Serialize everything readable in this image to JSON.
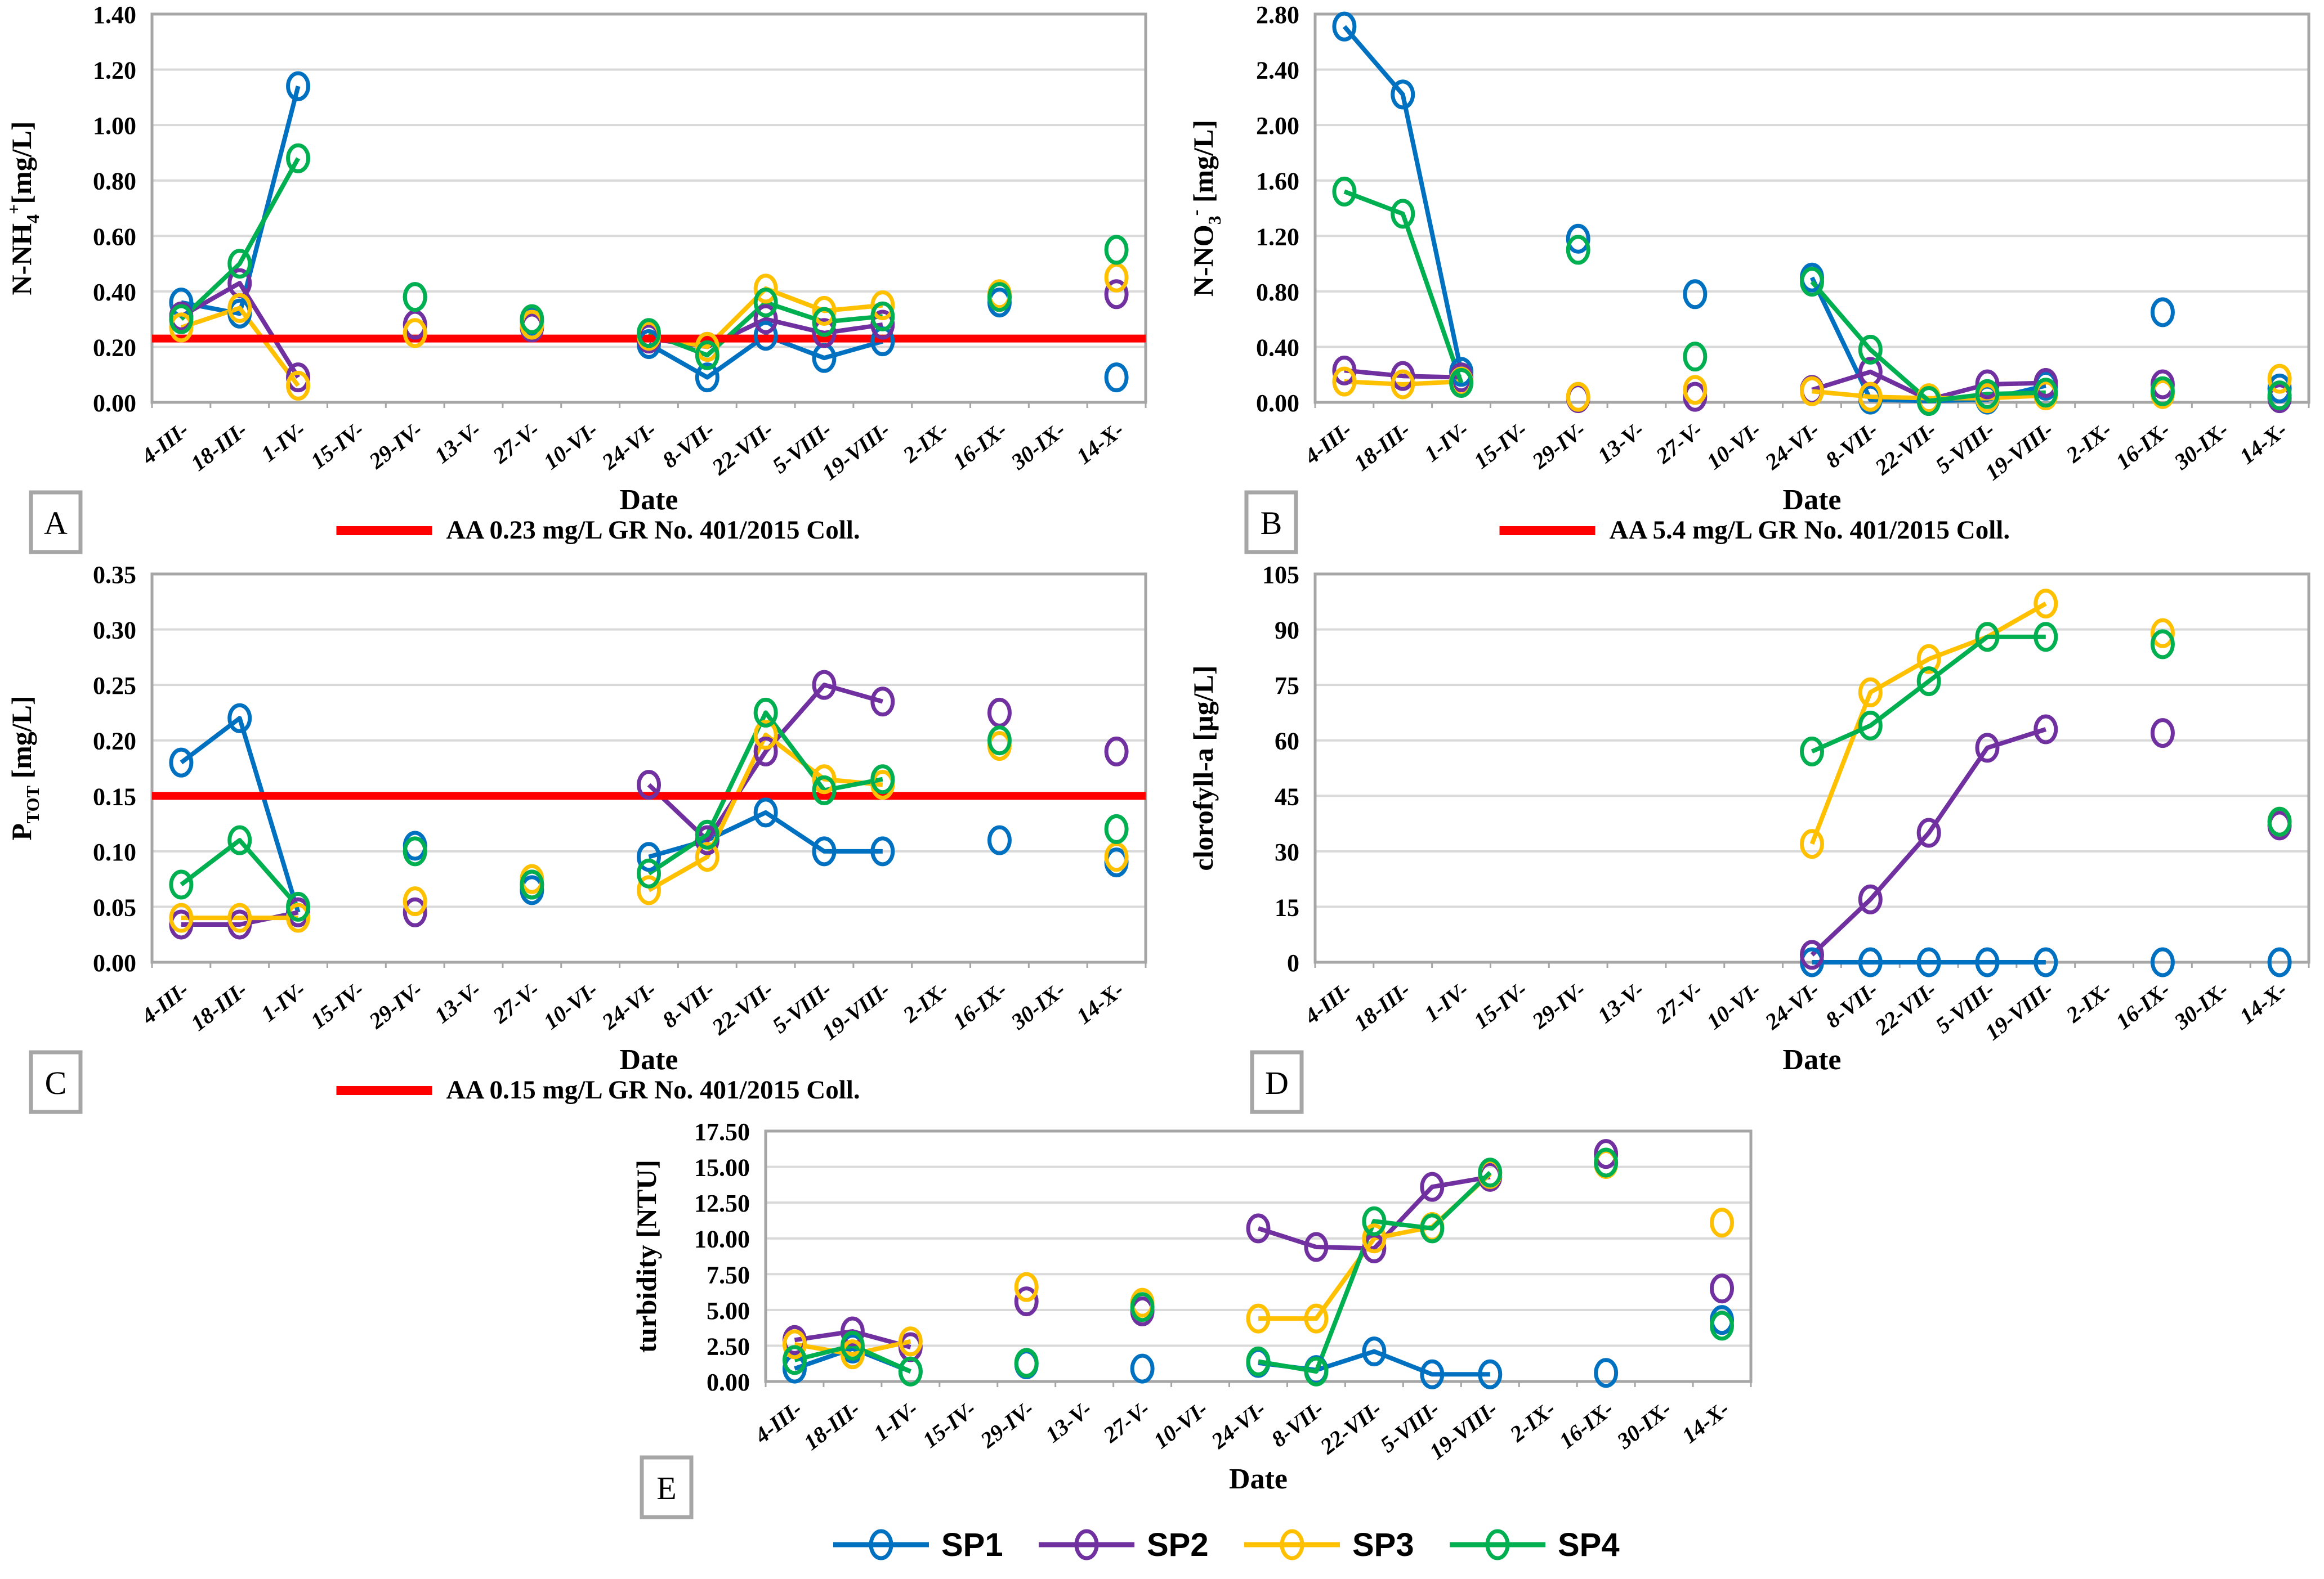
{
  "figure_title": "",
  "categories": [
    "4-III-",
    "18-III-",
    "1-IV-",
    "15-IV-",
    "29-IV-",
    "13-V-",
    "27-V-",
    "10-VI-",
    "24-VI-",
    "8-VII-",
    "22-VII-",
    "5-VIII-",
    "19-VIII-",
    "2-IX-",
    "16-IX-",
    "30-IX-",
    "14-X-"
  ],
  "legend": {
    "position": "bottom-center",
    "items": [
      {
        "name": "SP1",
        "color": "#0070C0"
      },
      {
        "name": "SP2",
        "color": "#7030A0"
      },
      {
        "name": "SP3",
        "color": "#FFC000"
      },
      {
        "name": "SP4",
        "color": "#00B050"
      }
    ]
  },
  "style_colors": {
    "reference_line": "#FF0000",
    "gridline": "#D9D9D9",
    "plot_border": "#A6A6A6",
    "panel_letter": "#FF0000",
    "panel_box_border": "#A6A6A6"
  },
  "chart_data": [
    {
      "id": "A",
      "type": "line",
      "panel_letter": "A",
      "ylabel_parts": [
        {
          "t": "N-NH"
        },
        {
          "t": "4",
          "v": "sub"
        },
        {
          "t": "+",
          "v": "sup"
        },
        {
          "t": "[mg/L]"
        }
      ],
      "xlabel": "Date",
      "ylim": [
        0,
        1.4
      ],
      "ystep": 0.2,
      "ydecimals": 2,
      "yticks": [
        "0.00",
        "0.20",
        "0.40",
        "0.60",
        "0.80",
        "1.00",
        "1.20",
        "1.40"
      ],
      "ref_line": {
        "value": 0.23,
        "label": "AA 0.23 mg/L GR No. 401/2015 Coll."
      },
      "series": [
        {
          "name": "SP1",
          "values": [
            0.36,
            0.32,
            1.14,
            null,
            0.38,
            null,
            0.29,
            null,
            0.21,
            0.09,
            0.24,
            0.16,
            0.22,
            null,
            0.36,
            null,
            0.09
          ]
        },
        {
          "name": "SP2",
          "values": [
            0.31,
            0.43,
            0.09,
            null,
            0.28,
            null,
            0.27,
            null,
            0.23,
            0.2,
            0.3,
            0.25,
            0.28,
            null,
            0.38,
            null,
            0.39
          ]
        },
        {
          "name": "SP3",
          "values": [
            0.27,
            0.34,
            0.06,
            null,
            0.25,
            null,
            0.28,
            null,
            0.24,
            0.2,
            0.41,
            0.33,
            0.35,
            null,
            0.39,
            null,
            0.45
          ]
        },
        {
          "name": "SP4",
          "values": [
            0.3,
            0.5,
            0.88,
            null,
            0.38,
            null,
            0.3,
            null,
            0.25,
            0.17,
            0.36,
            0.29,
            0.31,
            null,
            0.38,
            null,
            0.55
          ]
        }
      ]
    },
    {
      "id": "B",
      "type": "line",
      "panel_letter": "B",
      "ylabel_parts": [
        {
          "t": "N-NO"
        },
        {
          "t": "3",
          "v": "sub"
        },
        {
          "t": "-",
          "v": "sup"
        },
        {
          "t": " [mg/L]"
        }
      ],
      "xlabel": "Date",
      "ylim": [
        0,
        2.8
      ],
      "ystep": 0.4,
      "ydecimals": 2,
      "yticks": [
        "0.00",
        "0.40",
        "0.80",
        "1.20",
        "1.60",
        "2.00",
        "2.40",
        "2.80"
      ],
      "ref_line": {
        "value": 5.4,
        "label": "AA 5.4 mg/L GR No. 401/2015 Coll."
      },
      "series": [
        {
          "name": "SP1",
          "values": [
            2.71,
            2.22,
            0.22,
            null,
            1.18,
            null,
            0.78,
            null,
            0.9,
            0.02,
            0.01,
            0.02,
            0.12,
            null,
            0.65,
            null,
            0.1
          ]
        },
        {
          "name": "SP2",
          "values": [
            0.23,
            0.19,
            0.18,
            null,
            0.03,
            null,
            0.04,
            null,
            0.09,
            0.22,
            0.02,
            0.13,
            0.14,
            null,
            0.13,
            null,
            0.03
          ]
        },
        {
          "name": "SP3",
          "values": [
            0.15,
            0.13,
            0.15,
            null,
            0.04,
            null,
            0.09,
            null,
            0.08,
            0.04,
            0.03,
            0.03,
            0.05,
            null,
            0.06,
            null,
            0.17
          ]
        },
        {
          "name": "SP4",
          "values": [
            1.52,
            1.36,
            0.14,
            null,
            1.1,
            null,
            0.33,
            null,
            0.87,
            0.38,
            0.01,
            0.06,
            0.07,
            null,
            0.08,
            null,
            0.05
          ]
        }
      ]
    },
    {
      "id": "C",
      "type": "line",
      "panel_letter": "C",
      "ylabel_parts": [
        {
          "t": "P"
        },
        {
          "t": "TOT",
          "v": "sub"
        },
        {
          "t": " [mg/L]"
        }
      ],
      "xlabel": "Date",
      "ylim": [
        0,
        0.35
      ],
      "ystep": 0.05,
      "ydecimals": 2,
      "yticks": [
        "0.00",
        "0.05",
        "0.10",
        "0.15",
        "0.20",
        "0.25",
        "0.30",
        "0.35"
      ],
      "ref_line": {
        "value": 0.15,
        "label": "AA 0.15 mg/L GR No. 401/2015 Coll."
      },
      "series": [
        {
          "name": "SP1",
          "values": [
            0.18,
            0.22,
            0.045,
            null,
            0.105,
            null,
            0.065,
            null,
            0.095,
            0.11,
            0.135,
            0.1,
            0.1,
            null,
            0.11,
            null,
            0.09
          ]
        },
        {
          "name": "SP2",
          "values": [
            0.034,
            0.034,
            0.045,
            null,
            0.045,
            null,
            0.07,
            null,
            0.16,
            0.11,
            0.19,
            0.25,
            0.235,
            null,
            0.225,
            null,
            0.19
          ]
        },
        {
          "name": "SP3",
          "values": [
            0.04,
            0.04,
            0.04,
            null,
            0.055,
            null,
            0.075,
            null,
            0.065,
            0.095,
            0.205,
            0.165,
            0.16,
            null,
            0.195,
            null,
            0.095
          ]
        },
        {
          "name": "SP4",
          "values": [
            0.07,
            0.11,
            0.05,
            null,
            0.1,
            null,
            0.07,
            null,
            0.08,
            0.115,
            0.225,
            0.155,
            0.165,
            null,
            0.2,
            null,
            0.12
          ]
        }
      ]
    },
    {
      "id": "D",
      "type": "line",
      "panel_letter": "D",
      "ylabel_parts": [
        {
          "t": "clorofyll-a [µg/L]"
        }
      ],
      "xlabel": "Date",
      "ylim": [
        0,
        105
      ],
      "ystep": 15,
      "ydecimals": 0,
      "yticks": [
        "0",
        "15",
        "30",
        "45",
        "60",
        "75",
        "90",
        "105"
      ],
      "ref_line": null,
      "series": [
        {
          "name": "SP1",
          "values": [
            null,
            null,
            null,
            null,
            null,
            null,
            null,
            null,
            0,
            0,
            0,
            0,
            0,
            null,
            0,
            null,
            0
          ]
        },
        {
          "name": "SP2",
          "values": [
            null,
            null,
            null,
            null,
            null,
            null,
            null,
            null,
            2,
            17,
            35,
            58,
            63,
            null,
            62,
            null,
            37
          ]
        },
        {
          "name": "SP3",
          "values": [
            null,
            null,
            null,
            null,
            null,
            null,
            null,
            null,
            32,
            73,
            82,
            88,
            97,
            null,
            89,
            null,
            38
          ]
        },
        {
          "name": "SP4",
          "values": [
            null,
            null,
            null,
            null,
            null,
            null,
            null,
            null,
            57,
            64,
            76,
            88,
            88,
            null,
            86,
            null,
            38
          ]
        }
      ]
    },
    {
      "id": "E",
      "type": "line",
      "panel_letter": "E",
      "ylabel_parts": [
        {
          "t": "turbidity [NTU]"
        }
      ],
      "xlabel": "Date",
      "ylim": [
        0,
        17.5
      ],
      "ystep": 2.5,
      "ydecimals": 2,
      "yticks": [
        "0.00",
        "2.50",
        "5.00",
        "7.50",
        "10.00",
        "12.50",
        "15.00",
        "17.50"
      ],
      "ref_line": null,
      "series": [
        {
          "name": "SP1",
          "values": [
            0.9,
            2.3,
            0.7,
            null,
            1.2,
            null,
            0.9,
            null,
            1.3,
            0.8,
            2.1,
            0.5,
            0.5,
            null,
            0.6,
            null,
            4.3
          ]
        },
        {
          "name": "SP2",
          "values": [
            2.9,
            3.5,
            2.4,
            null,
            5.6,
            null,
            4.9,
            null,
            10.7,
            9.4,
            9.3,
            13.6,
            14.3,
            null,
            15.9,
            null,
            6.5
          ]
        },
        {
          "name": "SP3",
          "values": [
            2.6,
            1.9,
            2.8,
            null,
            6.6,
            null,
            5.5,
            null,
            4.4,
            4.4,
            10.0,
            10.8,
            14.5,
            null,
            15.2,
            null,
            11.1
          ]
        },
        {
          "name": "SP4",
          "values": [
            1.5,
            2.5,
            0.7,
            null,
            1.3,
            null,
            5.2,
            null,
            1.4,
            0.7,
            11.2,
            10.7,
            14.6,
            null,
            15.3,
            null,
            3.9
          ]
        }
      ]
    }
  ]
}
